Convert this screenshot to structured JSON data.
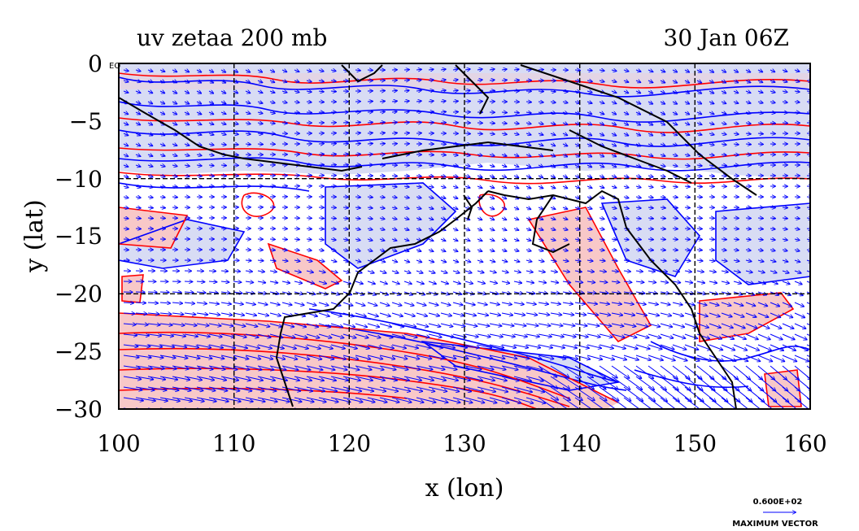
{
  "title_left": "uv zetaa 200 mb",
  "title_right": "30 Jan 06Z",
  "xlabel": "x (lon)",
  "ylabel": "y (lat)",
  "x_ticks": [
    "100",
    "110",
    "120",
    "130",
    "140",
    "150",
    "160"
  ],
  "y_ticks": [
    "0",
    "−5",
    "−10",
    "−15",
    "−20",
    "−25",
    "−30"
  ],
  "corner_label": "EQ",
  "vector_legend": {
    "value": "0.600E+02",
    "label": "MAXIMUM VECTOR"
  },
  "colors": {
    "positive_contour": "#ff0000",
    "positive_fill": "#f8c8c8",
    "negative_contour": "#0000ff",
    "negative_fill": "#d8dcf4",
    "vectors": "#0000ff",
    "coastline": "#000000",
    "grid": "#000000"
  },
  "chart_data": {
    "type": "map",
    "variables": [
      "uv",
      "zetaa"
    ],
    "level": "200 mb",
    "time": "30 Jan 06Z",
    "xlim": [
      100,
      160
    ],
    "ylim": [
      -30,
      0
    ],
    "grid": true,
    "grid_lon": [
      110,
      120,
      130,
      140,
      150
    ],
    "grid_lat": [
      -10,
      -20
    ],
    "max_vector": 60,
    "vector_direction": "southeastward jet around 25-30S"
  }
}
